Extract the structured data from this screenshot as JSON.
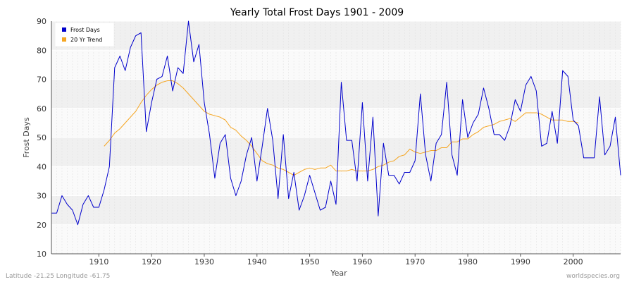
{
  "chart_data": {
    "type": "line",
    "title": "Yearly Total Frost Days 1901 - 2009",
    "xlabel": "Year",
    "ylabel": "Frost Days",
    "xlim": [
      1901,
      2009
    ],
    "ylim": [
      10,
      90
    ],
    "x_ticks": [
      "1910",
      "1920",
      "1930",
      "1940",
      "1950",
      "1960",
      "1970",
      "1980",
      "1990",
      "2000"
    ],
    "y_ticks": [
      "10",
      "20",
      "30",
      "40",
      "50",
      "60",
      "70",
      "80",
      "90"
    ],
    "grid": true,
    "legend_position": "top-left",
    "series": [
      {
        "name": "Frost Days",
        "color": "#0000cc",
        "x_start": 1901,
        "values": [
          24,
          24,
          30,
          27,
          25,
          20,
          27,
          30,
          26,
          26,
          32,
          40,
          74,
          78,
          73,
          81,
          85,
          86,
          52,
          62,
          70,
          71,
          78,
          66,
          74,
          72,
          90,
          76,
          82,
          62,
          51,
          36,
          48,
          51,
          36,
          30,
          35,
          44,
          50,
          35,
          47,
          60,
          49,
          29,
          51,
          29,
          38,
          25,
          30,
          37,
          31,
          25,
          26,
          35,
          27,
          69,
          49,
          49,
          35,
          62,
          35,
          57,
          23,
          48,
          37,
          37,
          34,
          38,
          38,
          42,
          65,
          44,
          35,
          48,
          51,
          69,
          44,
          37,
          63,
          50,
          55,
          58,
          67,
          60,
          51,
          51,
          49,
          54,
          63,
          59,
          68,
          71,
          66,
          47,
          48,
          59,
          48,
          73,
          71,
          56,
          54,
          43,
          43,
          43,
          64,
          44,
          47,
          57,
          37
        ]
      },
      {
        "name": "20 Yr Trend",
        "color": "#f5a623",
        "x_start": 1911,
        "values": [
          47,
          49,
          51.5,
          53,
          55,
          57,
          59,
          62,
          64.5,
          66.5,
          68,
          69,
          69.5,
          69.5,
          68.5,
          67,
          65,
          63,
          61,
          59,
          58,
          57.5,
          57,
          56,
          53.5,
          52.5,
          50.5,
          49,
          47,
          44.5,
          42,
          41,
          40.5,
          39.5,
          39,
          38,
          37,
          38,
          39,
          39.5,
          39,
          39.5,
          39.5,
          40.5,
          38.5,
          38.5,
          38.5,
          39,
          38.5,
          38.5,
          38.5,
          39,
          40,
          40.5,
          41.5,
          42,
          43.5,
          44,
          46,
          45,
          44.5,
          45,
          45.5,
          45.5,
          46.5,
          46.5,
          48.5,
          48.5,
          49.5,
          49.5,
          51,
          52,
          53.5,
          54,
          54.5,
          55.5,
          56,
          56.5,
          55.5,
          57,
          58.5,
          58.5,
          58.5,
          58,
          57,
          56,
          56,
          56,
          55.5,
          55.5,
          55
        ]
      }
    ]
  },
  "footer": {
    "location": "Latitude -21.25 Longitude -61.75",
    "source": "worldspecies.org"
  }
}
